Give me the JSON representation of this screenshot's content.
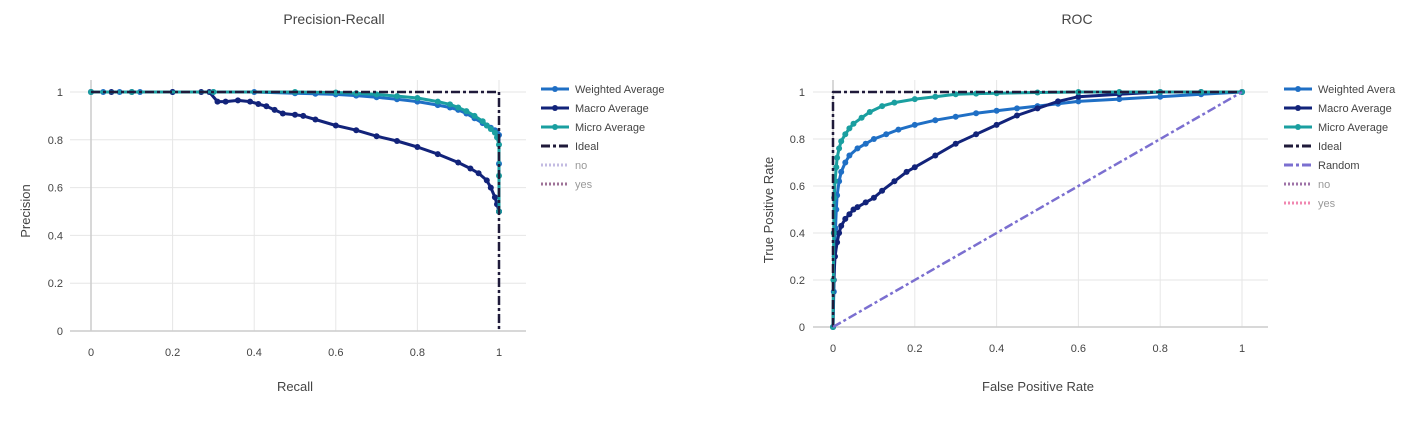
{
  "colors": {
    "weighted": "#1f6fc5",
    "macro": "#12237a",
    "micro": "#1a9fa0",
    "ideal": "#1f1a3a",
    "random": "#7b6fd0",
    "no_pr": "#b9b0de",
    "yes_pr": "#8e5a86",
    "no_roc": "#8e5a98",
    "yes_roc": "#ee73a3",
    "grid": "#e6e6e6",
    "axis": "#cccccc",
    "text": "#444444",
    "legend_dim_text": "#999999"
  },
  "chart_data": [
    {
      "type": "line",
      "title": "Precision-Recall",
      "xlabel": "Recall",
      "ylabel": "Precision",
      "xlim": [
        0,
        1
      ],
      "ylim": [
        0,
        1
      ],
      "xticks": [
        "0",
        "0.2",
        "0.4",
        "0.6",
        "0.8",
        "1"
      ],
      "yticks": [
        "0",
        "0.2",
        "0.4",
        "0.6",
        "0.8",
        "1"
      ],
      "grid": true,
      "legend_position": "right",
      "series": [
        {
          "name": "Weighted Average",
          "key": "weighted",
          "markers": true,
          "dash": "solid",
          "x": [
            0,
            0.03,
            0.07,
            0.12,
            0.2,
            0.3,
            0.4,
            0.5,
            0.55,
            0.6,
            0.65,
            0.7,
            0.75,
            0.8,
            0.85,
            0.88,
            0.9,
            0.92,
            0.94,
            0.96,
            0.97,
            0.98,
            0.99,
            0.995,
            1.0,
            1.0,
            1.0
          ],
          "y": [
            1.0,
            1.0,
            1.0,
            1.0,
            1.0,
            1.0,
            1.0,
            0.995,
            0.993,
            0.99,
            0.985,
            0.978,
            0.97,
            0.96,
            0.945,
            0.935,
            0.925,
            0.91,
            0.89,
            0.87,
            0.86,
            0.85,
            0.84,
            0.83,
            0.82,
            0.7,
            0.5
          ]
        },
        {
          "name": "Macro Average",
          "key": "macro",
          "markers": true,
          "dash": "solid",
          "x": [
            0,
            0.05,
            0.1,
            0.2,
            0.27,
            0.29,
            0.31,
            0.33,
            0.36,
            0.39,
            0.41,
            0.43,
            0.45,
            0.47,
            0.5,
            0.52,
            0.55,
            0.6,
            0.65,
            0.7,
            0.75,
            0.8,
            0.85,
            0.9,
            0.93,
            0.95,
            0.97,
            0.98,
            0.99,
            0.995,
            1.0,
            1.0
          ],
          "y": [
            1.0,
            1.0,
            1.0,
            1.0,
            1.0,
            1.0,
            0.96,
            0.96,
            0.965,
            0.96,
            0.95,
            0.94,
            0.925,
            0.91,
            0.905,
            0.9,
            0.885,
            0.86,
            0.84,
            0.815,
            0.795,
            0.77,
            0.74,
            0.705,
            0.68,
            0.66,
            0.63,
            0.6,
            0.56,
            0.53,
            0.5,
            0.5
          ]
        },
        {
          "name": "Micro Average",
          "key": "micro",
          "markers": true,
          "dash": "solid",
          "x": [
            0,
            0.1,
            0.3,
            0.5,
            0.6,
            0.65,
            0.7,
            0.75,
            0.8,
            0.85,
            0.88,
            0.9,
            0.92,
            0.94,
            0.96,
            0.97,
            0.98,
            0.99,
            0.995,
            1.0,
            1.0,
            1.0
          ],
          "y": [
            1.0,
            1.0,
            1.0,
            1.0,
            0.998,
            0.995,
            0.99,
            0.983,
            0.975,
            0.96,
            0.948,
            0.935,
            0.92,
            0.9,
            0.878,
            0.86,
            0.845,
            0.83,
            0.81,
            0.78,
            0.65,
            0.5
          ]
        },
        {
          "name": "Ideal",
          "key": "ideal",
          "markers": false,
          "dash": "dashdot",
          "x": [
            0,
            1,
            1
          ],
          "y": [
            1,
            1,
            0
          ]
        },
        {
          "name": "no",
          "key": "no_pr",
          "markers": false,
          "dash": "dot",
          "legend_only": true,
          "x": [],
          "y": []
        },
        {
          "name": "yes",
          "key": "yes_pr",
          "markers": false,
          "dash": "dot",
          "legend_only": true,
          "x": [],
          "y": []
        }
      ]
    },
    {
      "type": "line",
      "title": "ROC",
      "xlabel": "False Positive Rate",
      "ylabel": "True Positive Rate",
      "xlim": [
        0,
        1
      ],
      "ylim": [
        0,
        1
      ],
      "xticks": [
        "0",
        "0.2",
        "0.4",
        "0.6",
        "0.8",
        "1"
      ],
      "yticks": [
        "0",
        "0.2",
        "0.4",
        "0.6",
        "0.8",
        "1"
      ],
      "grid": true,
      "legend_position": "right",
      "series": [
        {
          "name": "Weighted Avera",
          "key": "weighted",
          "markers": true,
          "dash": "solid",
          "x": [
            0,
            0.002,
            0.004,
            0.006,
            0.008,
            0.01,
            0.015,
            0.02,
            0.03,
            0.04,
            0.06,
            0.08,
            0.1,
            0.13,
            0.16,
            0.2,
            0.25,
            0.3,
            0.35,
            0.4,
            0.45,
            0.5,
            0.55,
            0.6,
            0.7,
            0.8,
            0.9,
            1.0
          ],
          "y": [
            0,
            0.15,
            0.3,
            0.42,
            0.5,
            0.56,
            0.62,
            0.66,
            0.7,
            0.73,
            0.76,
            0.78,
            0.8,
            0.82,
            0.84,
            0.86,
            0.88,
            0.895,
            0.91,
            0.92,
            0.93,
            0.94,
            0.95,
            0.96,
            0.97,
            0.98,
            0.99,
            1.0
          ]
        },
        {
          "name": "Macro Average",
          "key": "macro",
          "markers": true,
          "dash": "solid",
          "x": [
            0,
            0.002,
            0.005,
            0.01,
            0.015,
            0.02,
            0.03,
            0.04,
            0.05,
            0.06,
            0.08,
            0.1,
            0.12,
            0.15,
            0.18,
            0.2,
            0.25,
            0.3,
            0.35,
            0.4,
            0.45,
            0.5,
            0.55,
            0.6,
            0.7,
            0.8,
            0.9,
            1.0
          ],
          "y": [
            0,
            0.2,
            0.3,
            0.36,
            0.4,
            0.43,
            0.46,
            0.48,
            0.5,
            0.51,
            0.53,
            0.55,
            0.58,
            0.62,
            0.66,
            0.68,
            0.73,
            0.78,
            0.82,
            0.86,
            0.9,
            0.93,
            0.96,
            0.98,
            0.99,
            1.0,
            1.0,
            1.0
          ]
        },
        {
          "name": "Micro Average",
          "key": "micro",
          "markers": true,
          "dash": "solid",
          "x": [
            0,
            0.001,
            0.002,
            0.003,
            0.005,
            0.008,
            0.01,
            0.015,
            0.02,
            0.03,
            0.04,
            0.05,
            0.07,
            0.09,
            0.12,
            0.15,
            0.2,
            0.25,
            0.3,
            0.35,
            0.4,
            0.5,
            0.6,
            0.7,
            0.8,
            0.9,
            1.0
          ],
          "y": [
            0,
            0.2,
            0.4,
            0.55,
            0.62,
            0.68,
            0.72,
            0.76,
            0.79,
            0.82,
            0.845,
            0.865,
            0.89,
            0.915,
            0.94,
            0.955,
            0.97,
            0.98,
            0.99,
            0.993,
            0.995,
            0.998,
            1.0,
            1.0,
            1.0,
            1.0,
            1.0
          ]
        },
        {
          "name": "Ideal",
          "key": "ideal",
          "markers": false,
          "dash": "dashdot",
          "x": [
            0,
            0,
            1
          ],
          "y": [
            0,
            1,
            1
          ]
        },
        {
          "name": "Random",
          "key": "random",
          "markers": false,
          "dash": "dashdot",
          "x": [
            0,
            1
          ],
          "y": [
            0,
            1
          ]
        },
        {
          "name": "no",
          "key": "no_roc",
          "markers": false,
          "dash": "dot",
          "legend_only": true,
          "x": [],
          "y": []
        },
        {
          "name": "yes",
          "key": "yes_roc",
          "markers": false,
          "dash": "dot",
          "legend_only": true,
          "x": [],
          "y": []
        }
      ]
    }
  ]
}
